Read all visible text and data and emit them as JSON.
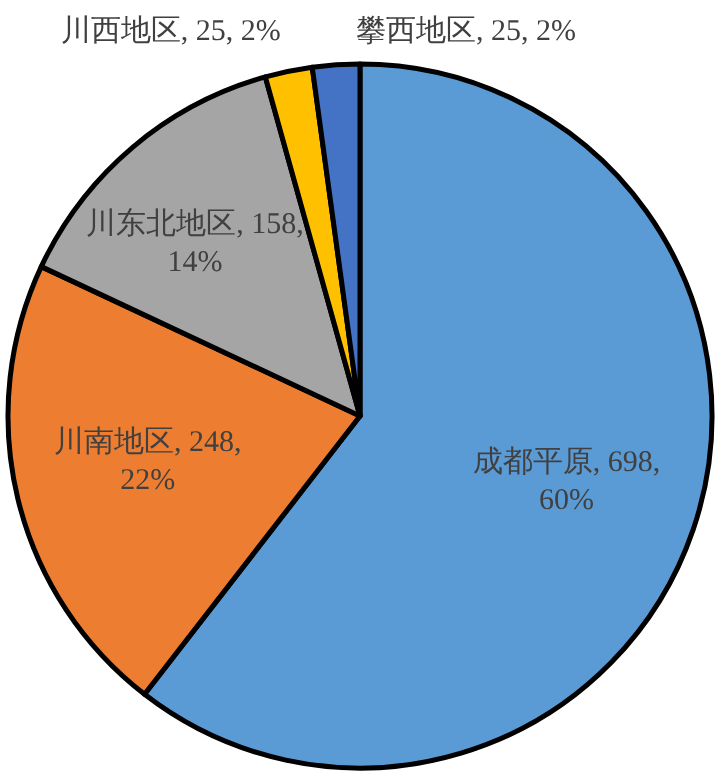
{
  "chart_data": {
    "type": "pie",
    "categories": [
      "成都平原",
      "川南地区",
      "川东北地区",
      "川西地区",
      "攀西地区"
    ],
    "values": [
      698,
      248,
      158,
      25,
      25
    ],
    "colors": [
      "#5b9bd5",
      "#ed7d31",
      "#a5a5a5",
      "#ffc000",
      "#4472c4"
    ],
    "data_labels": true,
    "value_labels": [
      "698, 60%",
      "248, 22%",
      "158, 14%",
      "25, 2%",
      "25, 2%"
    ]
  }
}
